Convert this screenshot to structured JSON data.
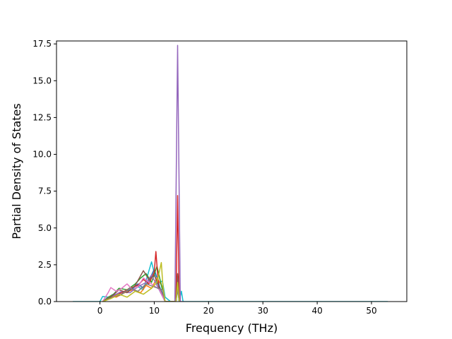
{
  "chart_data": {
    "type": "line",
    "title": "",
    "xlabel": "Frequency (THz)",
    "ylabel": "Partial Density of States",
    "xlim": [
      -8.0,
      56.5
    ],
    "ylim": [
      0.0,
      17.7
    ],
    "xticks": [
      0,
      10,
      20,
      30,
      40,
      50
    ],
    "xtick_labels": [
      "0",
      "10",
      "20",
      "30",
      "40",
      "50"
    ],
    "yticks": [
      0.0,
      2.5,
      5.0,
      7.5,
      10.0,
      12.5,
      15.0,
      17.5
    ],
    "ytick_labels": [
      "0.0",
      "2.5",
      "5.0",
      "7.5",
      "10.0",
      "12.5",
      "15.0",
      "17.5"
    ],
    "grid": false,
    "legend": "none",
    "colors": [
      "#1f77b4",
      "#ff7f0e",
      "#2ca02c",
      "#d62728",
      "#9467bd",
      "#8c564b",
      "#e377c2",
      "#7f7f7f",
      "#bcbd22",
      "#17becf"
    ],
    "series": [
      {
        "color": "#17becf",
        "x": [
          -5.0,
          0.0,
          0.5,
          1.5,
          3.0,
          5.0,
          7.0,
          8.0,
          9.5,
          10.5,
          11.5,
          12.0,
          13.0,
          14.0,
          14.3,
          14.6,
          15.0,
          15.3,
          16.0,
          53.0
        ],
        "y": [
          0.0,
          0.0,
          0.35,
          0.3,
          0.5,
          0.7,
          1.0,
          0.8,
          2.7,
          1.2,
          1.4,
          0.3,
          0.0,
          0.0,
          1.1,
          0.0,
          0.7,
          0.0,
          0.0,
          0.0
        ]
      },
      {
        "color": "#1f77b4",
        "x": [
          0.5,
          1.5,
          2.5,
          3.5,
          5.0,
          6.0,
          7.0,
          8.0,
          9.0,
          10.0,
          11.0,
          12.0,
          14.0,
          14.3,
          14.6
        ],
        "y": [
          0.0,
          0.3,
          0.5,
          0.4,
          0.7,
          0.9,
          1.2,
          0.9,
          1.4,
          2.2,
          1.0,
          0.0,
          0.0,
          1.2,
          0.0
        ]
      },
      {
        "color": "#ff7f0e",
        "x": [
          0.5,
          2.0,
          3.0,
          4.5,
          6.0,
          7.5,
          8.5,
          9.5,
          10.5,
          11.5,
          12.0,
          14.0,
          14.3,
          14.6
        ],
        "y": [
          0.0,
          0.4,
          0.3,
          0.6,
          0.8,
          0.6,
          1.1,
          0.9,
          1.6,
          1.0,
          0.0,
          0.0,
          1.5,
          0.0
        ]
      },
      {
        "color": "#2ca02c",
        "x": [
          0.5,
          2.5,
          3.5,
          5.0,
          6.5,
          7.5,
          8.5,
          9.5,
          10.5,
          12.0,
          14.0,
          14.3,
          14.6
        ],
        "y": [
          0.0,
          0.5,
          0.9,
          0.8,
          1.2,
          1.6,
          1.9,
          1.3,
          2.4,
          0.0,
          0.0,
          1.0,
          0.0
        ]
      },
      {
        "color": "#d62728",
        "x": [
          0.5,
          2.0,
          4.0,
          5.5,
          7.0,
          8.0,
          9.0,
          10.0,
          10.3,
          10.8,
          12.0,
          14.0,
          14.3,
          14.6
        ],
        "y": [
          0.0,
          0.3,
          0.6,
          0.9,
          1.1,
          1.5,
          1.2,
          2.0,
          3.4,
          1.0,
          0.0,
          0.0,
          7.2,
          0.0
        ]
      },
      {
        "color": "#9467bd",
        "x": [
          0.5,
          2.5,
          4.0,
          5.5,
          7.0,
          8.5,
          9.5,
          10.5,
          12.0,
          13.8,
          14.3,
          14.8,
          15.5
        ],
        "y": [
          0.0,
          0.4,
          0.7,
          0.6,
          1.0,
          1.3,
          1.8,
          1.1,
          0.0,
          0.0,
          17.4,
          0.0,
          0.0
        ]
      },
      {
        "color": "#8c564b",
        "x": [
          0.5,
          2.0,
          3.5,
          5.0,
          6.5,
          8.0,
          9.0,
          10.0,
          11.0,
          12.0,
          14.0,
          14.3,
          14.6
        ],
        "y": [
          0.0,
          0.3,
          0.8,
          0.6,
          1.1,
          2.1,
          1.5,
          1.8,
          0.9,
          0.0,
          0.0,
          1.9,
          0.0
        ]
      },
      {
        "color": "#e377c2",
        "x": [
          0.5,
          1.5,
          2.0,
          3.0,
          4.0,
          5.0,
          6.0,
          7.0,
          8.0,
          9.5,
          11.0,
          12.0
        ],
        "y": [
          0.0,
          0.6,
          0.95,
          0.7,
          0.9,
          1.2,
          0.8,
          1.0,
          1.6,
          1.2,
          0.8,
          0.0
        ]
      },
      {
        "color": "#7f7f7f",
        "x": [
          0.5,
          2.5,
          4.0,
          5.5,
          7.0,
          8.5,
          10.0,
          11.5,
          12.0,
          14.0,
          14.3,
          14.6
        ],
        "y": [
          0.0,
          0.3,
          0.5,
          0.9,
          0.7,
          1.2,
          1.0,
          0.8,
          0.0,
          0.0,
          0.8,
          0.0
        ]
      },
      {
        "color": "#bcbd22",
        "x": [
          0.5,
          2.0,
          3.5,
          5.0,
          6.5,
          8.0,
          9.5,
          10.5,
          11.3,
          11.6,
          12.0,
          14.0,
          14.3,
          14.6
        ],
        "y": [
          0.0,
          0.2,
          0.5,
          0.3,
          0.7,
          0.5,
          0.9,
          1.3,
          2.65,
          1.0,
          0.0,
          0.0,
          1.3,
          0.0
        ]
      }
    ]
  }
}
